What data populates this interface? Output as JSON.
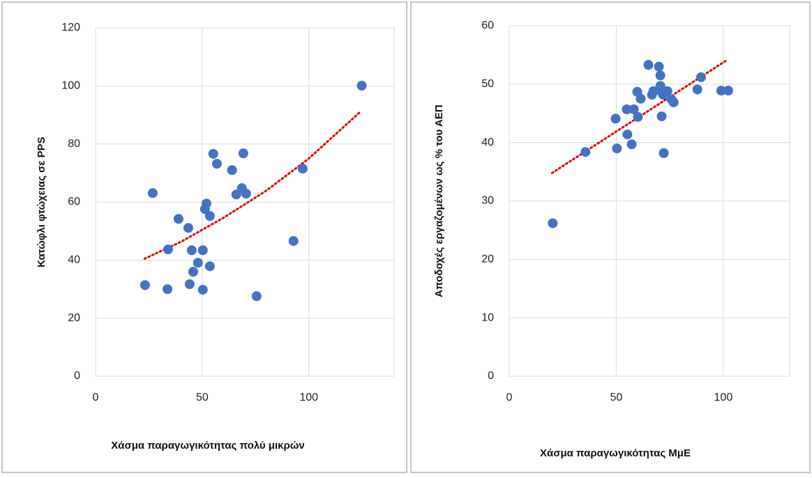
{
  "chart_data": [
    {
      "type": "scatter",
      "x_label": "Χάσμα παραγωγικότητας πολύ μικρών",
      "y_label": "Κατώφλι φτώχειας σε PPS",
      "color": "#4472c4",
      "grid": true,
      "x": [
        23.2,
        26.8,
        33.7,
        34,
        38.9,
        43.5,
        44.1,
        45.1,
        45.8,
        48,
        50.3,
        50.3,
        51.3,
        52,
        53.6,
        53.6,
        55.2,
        56.9,
        64,
        66,
        68.6,
        69.3,
        70.6,
        75.5,
        92.8,
        97.1,
        124.8
      ],
      "values": [
        31.4,
        63.1,
        30,
        43.7,
        54.2,
        51.1,
        31.7,
        43.4,
        36,
        39.1,
        43.4,
        29.8,
        57.6,
        59.5,
        55.2,
        37.9,
        76.6,
        73.2,
        71,
        62.6,
        64.8,
        76.8,
        62.9,
        27.6,
        46.6,
        71.5,
        100.1
      ],
      "trendline": {
        "color": "#e00000",
        "x": [
          23,
          40,
          60,
          80,
          100,
          124
        ],
        "values": [
          40.5,
          46.3,
          54.6,
          63.9,
          75.0,
          91.0
        ]
      },
      "xlim": [
        0,
        140
      ],
      "xticks": [
        0,
        50,
        100
      ],
      "ylim": [
        0,
        120
      ],
      "yticks": [
        0,
        20,
        40,
        60,
        80,
        100,
        120
      ]
    },
    {
      "type": "scatter",
      "x_label": "Χάσμα παραγωγικότητας ΜμΕ",
      "y_label": "Αποδοχές εργαζομένων ως % του ΑΕΠ",
      "color": "#4472c4",
      "grid": true,
      "x": [
        20.3,
        35.6,
        49.7,
        50.3,
        54.9,
        55.2,
        57.2,
        58.2,
        59.8,
        60.1,
        61.4,
        65,
        66.7,
        67.3,
        69.9,
        70.6,
        70.6,
        70.9,
        71.2,
        71.9,
        72.2,
        73.9,
        75.8,
        76.8,
        87.9,
        89.6,
        99,
        102.3
      ],
      "values": [
        26.2,
        38.4,
        44.1,
        39,
        45.7,
        41.4,
        39.7,
        45.7,
        48.7,
        44.4,
        47.5,
        53.3,
        48.2,
        48.8,
        53,
        51.5,
        49.7,
        48.8,
        44.5,
        48.2,
        38.2,
        48.8,
        47.4,
        46.9,
        49.1,
        51.2,
        48.9,
        48.9
      ],
      "trendline": {
        "color": "#e00000",
        "x": [
          20,
          102
        ],
        "values": [
          34.8,
          54.2
        ]
      },
      "xlim": [
        0,
        131
      ],
      "xticks": [
        0,
        50,
        100
      ],
      "ylim": [
        0,
        60
      ],
      "yticks": [
        0,
        10,
        20,
        30,
        40,
        50,
        60
      ]
    }
  ]
}
